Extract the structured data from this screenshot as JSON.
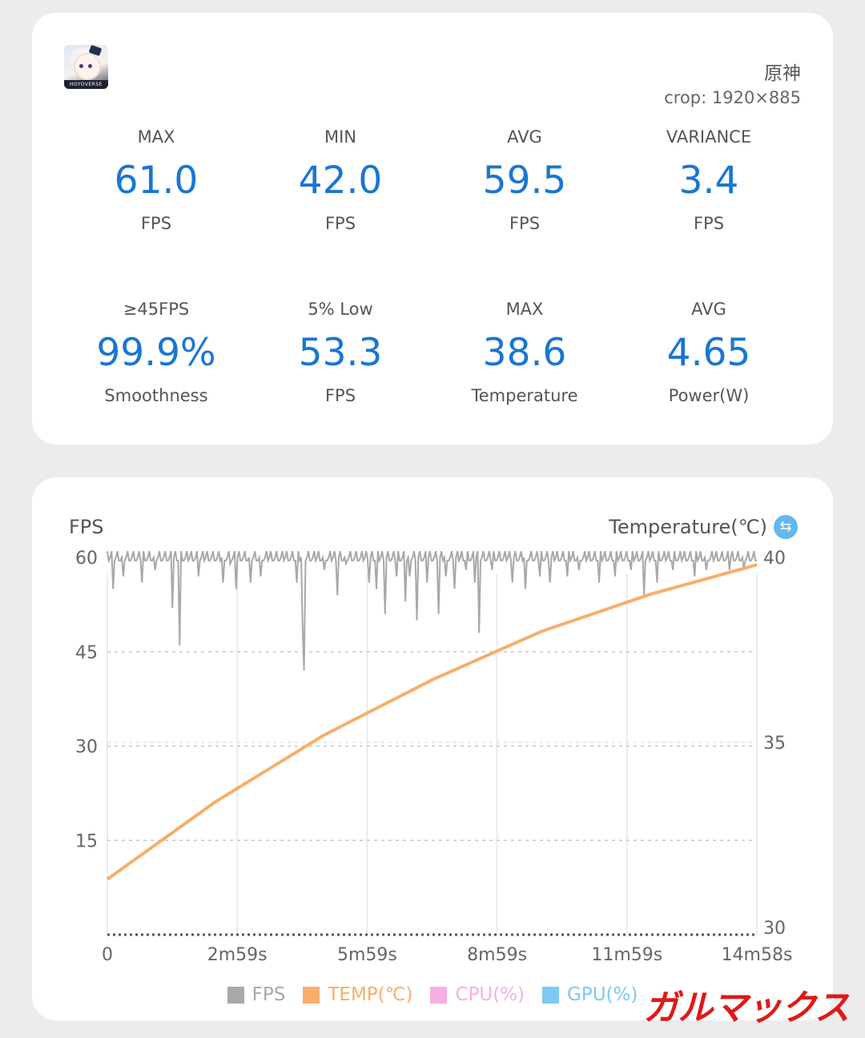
{
  "header": {
    "game_title": "原神",
    "crop": "crop: 1920×885",
    "app_icon_brand": "HOYOVERSE"
  },
  "stats": [
    {
      "label": "MAX",
      "value": "61.0",
      "unit": "FPS"
    },
    {
      "label": "MIN",
      "value": "42.0",
      "unit": "FPS"
    },
    {
      "label": "AVG",
      "value": "59.5",
      "unit": "FPS"
    },
    {
      "label": "VARIANCE",
      "value": "3.4",
      "unit": "FPS"
    },
    {
      "label": "≥45FPS",
      "value": "99.9%",
      "unit": "Smoothness"
    },
    {
      "label": "5% Low",
      "value": "53.3",
      "unit": "FPS"
    },
    {
      "label": "MAX",
      "value": "38.6",
      "unit": "Temperature"
    },
    {
      "label": "AVG",
      "value": "4.65",
      "unit": "Power(W)"
    }
  ],
  "chart": {
    "left_title": "FPS",
    "right_title": "Temperature(℃)",
    "swap_icon": "swap-icon"
  },
  "chart_data": {
    "type": "line",
    "x_ticks": [
      "0",
      "2m59s",
      "5m59s",
      "8m59s",
      "11m59s",
      "14m58s"
    ],
    "x_range_seconds": [
      0,
      898
    ],
    "y_left_ticks": [
      15,
      30,
      45,
      60
    ],
    "y_left_range": [
      0,
      60
    ],
    "y_right_ticks": [
      30,
      35,
      40
    ],
    "y_right_range": [
      29.8,
      40
    ],
    "grid": true,
    "series": [
      {
        "name": "FPS",
        "color": "#a8a8a8",
        "axis": "left",
        "baseline": 60,
        "dips": [
          [
            8,
            55
          ],
          [
            22,
            57
          ],
          [
            33,
            50
          ],
          [
            48,
            56
          ],
          [
            66,
            58
          ],
          [
            90,
            52
          ],
          [
            100,
            46
          ],
          [
            126,
            57
          ],
          [
            160,
            56
          ],
          [
            170,
            59
          ],
          [
            178,
            55
          ],
          [
            198,
            56
          ],
          [
            212,
            57
          ],
          [
            235,
            53
          ],
          [
            253,
            58
          ],
          [
            262,
            56
          ],
          [
            270,
            49
          ],
          [
            272,
            42
          ],
          [
            300,
            58
          ],
          [
            318,
            54
          ],
          [
            330,
            59
          ],
          [
            345,
            57
          ],
          [
            362,
            56
          ],
          [
            372,
            55
          ],
          [
            384,
            51
          ],
          [
            400,
            57
          ],
          [
            412,
            53
          ],
          [
            418,
            57
          ],
          [
            428,
            50
          ],
          [
            442,
            56
          ],
          [
            458,
            51
          ],
          [
            468,
            57
          ],
          [
            480,
            55
          ],
          [
            496,
            58
          ],
          [
            508,
            56
          ],
          [
            514,
            48
          ],
          [
            532,
            58
          ],
          [
            560,
            56
          ],
          [
            578,
            55
          ],
          [
            598,
            57
          ],
          [
            612,
            56
          ],
          [
            636,
            57
          ],
          [
            652,
            58
          ],
          [
            680,
            56
          ],
          [
            702,
            57
          ],
          [
            724,
            58
          ],
          [
            742,
            54
          ],
          [
            760,
            56
          ],
          [
            782,
            58
          ],
          [
            812,
            57
          ],
          [
            828,
            58
          ],
          [
            860,
            58
          ],
          [
            880,
            58
          ]
        ]
      },
      {
        "name": "TEMP(℃)",
        "color": "#f7ae6a",
        "axis": "right",
        "points": [
          [
            0,
            31.3
          ],
          [
            150,
            33.4
          ],
          [
            300,
            35.2
          ],
          [
            450,
            36.7
          ],
          [
            600,
            38.0
          ],
          [
            750,
            39.0
          ],
          [
            898,
            39.8
          ]
        ]
      },
      {
        "name": "CPU(%)",
        "color": "#f7aee0"
      },
      {
        "name": "GPU(%)",
        "color": "#7ec8f5"
      }
    ]
  },
  "legend": [
    {
      "label": "FPS",
      "color": "#a8a8a8"
    },
    {
      "label": "TEMP(℃)",
      "color": "#f7ae6a"
    },
    {
      "label": "CPU(%)",
      "color": "#f7aee0"
    },
    {
      "label": "GPU(%)",
      "color": "#7ec8f5"
    }
  ],
  "watermark": "ガルマックス"
}
